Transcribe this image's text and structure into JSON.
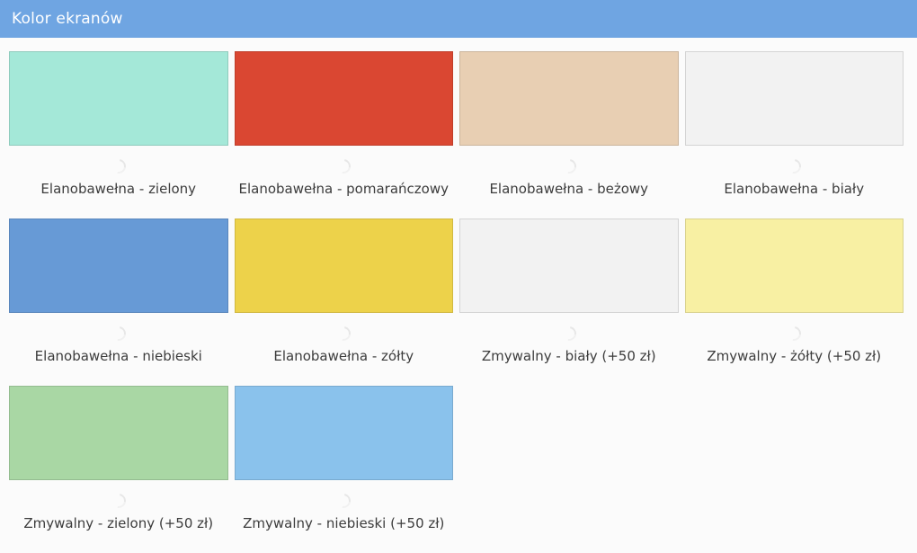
{
  "header": {
    "title": "Kolor ekranów"
  },
  "theme": {
    "header_bg": "#6fa5e2",
    "header_text": "#ffffff",
    "page_bg": "#fbfbfb",
    "label_color": "#3c3c3c",
    "swatch_border": "rgba(0,0,0,0.12)"
  },
  "swatches": [
    {
      "label": "Elanobawełna - zielony",
      "color": "#a4e8d8"
    },
    {
      "label": "Elanobawełna - pomarańczowy",
      "color": "#da4732"
    },
    {
      "label": "Elanobawełna - beżowy",
      "color": "#e8cfb3"
    },
    {
      "label": "Elanobawełna - biały",
      "color": "#f2f2f2"
    },
    {
      "label": "Elanobawełna - niebieski",
      "color": "#679ad6"
    },
    {
      "label": "Elanobawełna - zółty",
      "color": "#edd24a"
    },
    {
      "label": "Zmywalny - biały (+50 zł)",
      "color": "#f2f2f2"
    },
    {
      "label": "Zmywalny - żółty (+50 zł)",
      "color": "#f8f0a3"
    },
    {
      "label": "Zmywalny - zielony (+50 zł)",
      "color": "#a9d7a4"
    },
    {
      "label": "Zmywalny - niebieski (+50 zł)",
      "color": "#8ac2ec"
    }
  ]
}
